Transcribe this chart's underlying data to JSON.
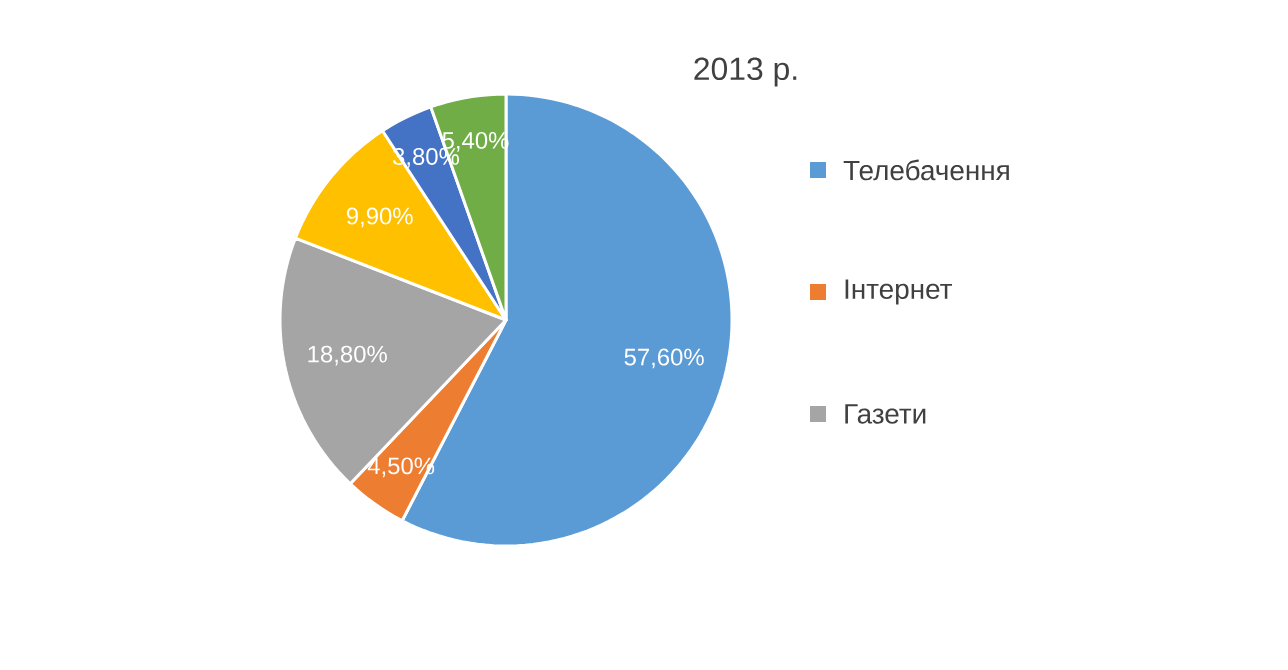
{
  "chart_data": {
    "type": "pie",
    "title": "2013 р.",
    "categories": [
      "Телебачення",
      "Інтернет",
      "Газети",
      null,
      null,
      null
    ],
    "values": [
      57.6,
      4.5,
      18.8,
      9.9,
      3.8,
      5.4
    ],
    "value_labels": [
      "57,60%",
      "4,50%",
      "18,80%",
      "9,90%",
      "3,80%",
      "5,40%"
    ],
    "colors": [
      "#5b9bd5",
      "#ed7d31",
      "#a5a5a5",
      "#ffc000",
      "#4472c4",
      "#70ad47"
    ],
    "legend": "right"
  }
}
